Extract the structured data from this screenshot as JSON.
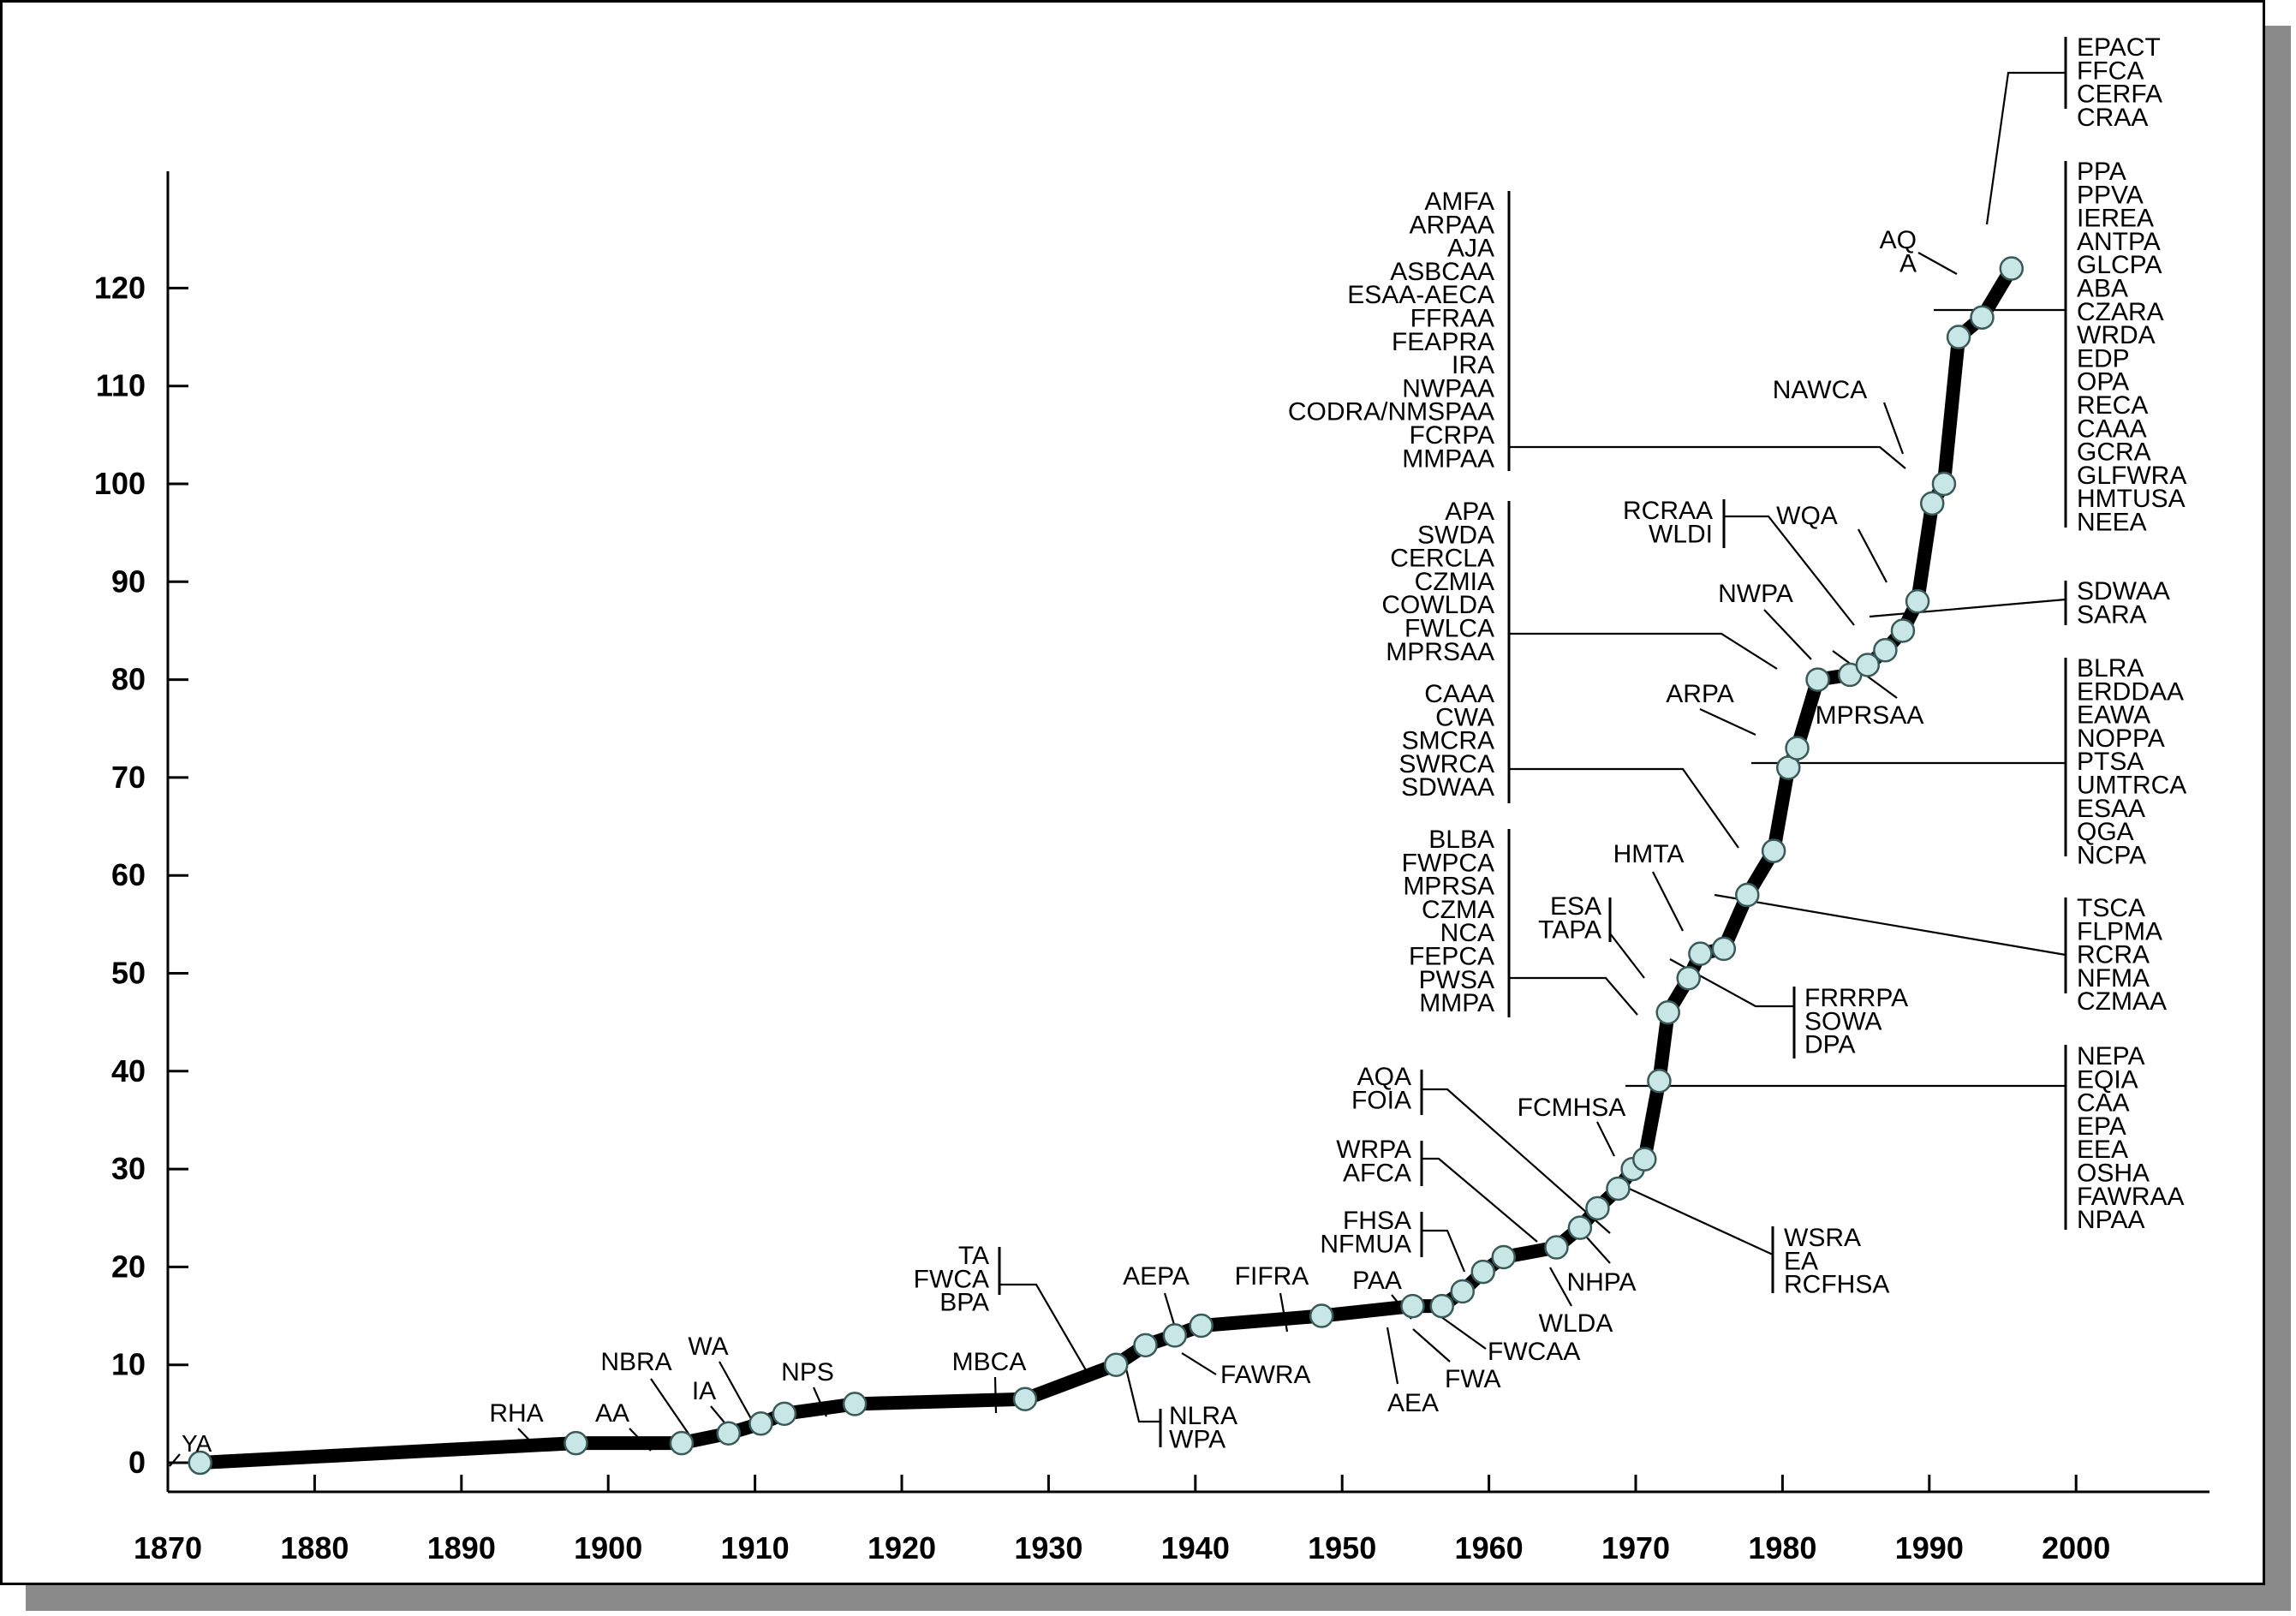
{
  "chart_data": {
    "type": "line",
    "title": "",
    "xlabel": "",
    "ylabel": "",
    "xlim": [
      1870,
      2010
    ],
    "ylim": [
      0,
      130
    ],
    "x_ticks": [
      "1870",
      "1880",
      "1890",
      "1900",
      "1910",
      "1920",
      "1930",
      "1940",
      "1950",
      "1960",
      "1970",
      "1980",
      "1990",
      "2000"
    ],
    "y_ticks": [
      "0",
      "10",
      "20",
      "30",
      "40",
      "50",
      "60",
      "70",
      "80",
      "90",
      "100",
      "110",
      "120"
    ],
    "colors": {
      "line": "#000000",
      "marker_fill": "#c8e6e6",
      "marker_stroke": "#3a5a5a",
      "shadow": "#8a8a8a"
    },
    "points": [
      {
        "x": 1872.2,
        "y": 0
      },
      {
        "x": 1897.8,
        "y": 2
      },
      {
        "x": 1905.0,
        "y": 2
      },
      {
        "x": 1908.2,
        "y": 3
      },
      {
        "x": 1910.4,
        "y": 4
      },
      {
        "x": 1912.0,
        "y": 5
      },
      {
        "x": 1916.8,
        "y": 6
      },
      {
        "x": 1928.4,
        "y": 6.5
      },
      {
        "x": 1934.6,
        "y": 10
      },
      {
        "x": 1936.6,
        "y": 12
      },
      {
        "x": 1938.6,
        "y": 13
      },
      {
        "x": 1940.4,
        "y": 14
      },
      {
        "x": 1948.6,
        "y": 15
      },
      {
        "x": 1954.8,
        "y": 16
      },
      {
        "x": 1956.8,
        "y": 16
      },
      {
        "x": 1958.2,
        "y": 17.5
      },
      {
        "x": 1959.6,
        "y": 19.5
      },
      {
        "x": 1961.0,
        "y": 21
      },
      {
        "x": 1964.6,
        "y": 22
      },
      {
        "x": 1966.2,
        "y": 24
      },
      {
        "x": 1967.4,
        "y": 26
      },
      {
        "x": 1968.8,
        "y": 28
      },
      {
        "x": 1969.8,
        "y": 30
      },
      {
        "x": 1970.6,
        "y": 31
      },
      {
        "x": 1971.6,
        "y": 39
      },
      {
        "x": 1972.2,
        "y": 46
      },
      {
        "x": 1973.6,
        "y": 49.5
      },
      {
        "x": 1974.4,
        "y": 52
      },
      {
        "x": 1976.0,
        "y": 52.5
      },
      {
        "x": 1977.6,
        "y": 58
      },
      {
        "x": 1979.4,
        "y": 62.5
      },
      {
        "x": 1980.4,
        "y": 71
      },
      {
        "x": 1981.0,
        "y": 73
      },
      {
        "x": 1982.4,
        "y": 80
      },
      {
        "x": 1984.6,
        "y": 80.5
      },
      {
        "x": 1985.8,
        "y": 81.5
      },
      {
        "x": 1987.0,
        "y": 83
      },
      {
        "x": 1988.2,
        "y": 85
      },
      {
        "x": 1989.2,
        "y": 88
      },
      {
        "x": 1990.2,
        "y": 98
      },
      {
        "x": 1991.0,
        "y": 100
      },
      {
        "x": 1992.0,
        "y": 115
      },
      {
        "x": 1993.6,
        "y": 117
      },
      {
        "x": 1995.6,
        "y": 122
      }
    ],
    "annotations": [
      {
        "labels": [
          "YA"
        ],
        "align": "left"
      },
      {
        "labels": [
          "RHA"
        ],
        "align": "center"
      },
      {
        "labels": [
          "AA"
        ],
        "align": "center"
      },
      {
        "labels": [
          "NBRA"
        ],
        "align": "center"
      },
      {
        "labels": [
          "WA"
        ],
        "align": "center"
      },
      {
        "labels": [
          "IA"
        ],
        "align": "center"
      },
      {
        "labels": [
          "NPS"
        ],
        "align": "center"
      },
      {
        "labels": [
          "MBCA"
        ],
        "align": "center"
      },
      {
        "labels": [
          "TA",
          "FWCA",
          "BPA"
        ],
        "align": "right"
      },
      {
        "labels": [
          "NLRA",
          "WPA"
        ],
        "align": "left"
      },
      {
        "labels": [
          "AEPA"
        ],
        "align": "center"
      },
      {
        "labels": [
          "FAWRA"
        ],
        "align": "left"
      },
      {
        "labels": [
          "FIFRA"
        ],
        "align": "center"
      },
      {
        "labels": [
          "PAA"
        ],
        "align": "center"
      },
      {
        "labels": [
          "AEA"
        ],
        "align": "center"
      },
      {
        "labels": [
          "FWA"
        ],
        "align": "left"
      },
      {
        "labels": [
          "FWCAA"
        ],
        "align": "left"
      },
      {
        "labels": [
          "FHSA",
          "NFMUA"
        ],
        "align": "right"
      },
      {
        "labels": [
          "WRPA",
          "AFCA"
        ],
        "align": "right"
      },
      {
        "labels": [
          "WLDA"
        ],
        "align": "center"
      },
      {
        "labels": [
          "AQA",
          "FOIA"
        ],
        "align": "right"
      },
      {
        "labels": [
          "NHPA"
        ],
        "align": "center"
      },
      {
        "labels": [
          "FCMHSA"
        ],
        "align": "center"
      },
      {
        "labels": [
          "WSRA",
          "EA",
          "RCFHSA"
        ],
        "align": "left"
      },
      {
        "labels": [
          "NEPA",
          "EQIA",
          "CAA",
          "EPA",
          "EEA",
          "OSHA",
          "FAWRAA",
          "NPAA"
        ],
        "align": "left"
      },
      {
        "labels": [
          "BLBA",
          "FWPCA",
          "MPRSA",
          "CZMA",
          "NCA",
          "FEPCA",
          "PWSA",
          "MMPA"
        ],
        "align": "right"
      },
      {
        "labels": [
          "ESA",
          "TAPA"
        ],
        "align": "right"
      },
      {
        "labels": [
          "HMTA"
        ],
        "align": "center"
      },
      {
        "labels": [
          "FRRRPA",
          "SOWA",
          "DPA"
        ],
        "align": "left"
      },
      {
        "labels": [
          "TSCA",
          "FLPMA",
          "RCRA",
          "NFMA",
          "CZMAA"
        ],
        "align": "left"
      },
      {
        "labels": [
          "CAAA",
          "CWA",
          "SMCRA",
          "SWRCA",
          "SDWAA"
        ],
        "align": "right"
      },
      {
        "labels": [
          "ARPA"
        ],
        "align": "center"
      },
      {
        "labels": [
          "BLRA",
          "ERDDAA",
          "EAWA",
          "NOPPA",
          "PTSA",
          "UMTRCA",
          "ESAA",
          "QGA",
          "NCPA"
        ],
        "align": "left"
      },
      {
        "labels": [
          "APA",
          "SWDA",
          "CERCLA",
          "CZMIA",
          "COWLDA",
          "FWLCA",
          "MPRSAA"
        ],
        "align": "right"
      },
      {
        "labels": [
          "NWPA"
        ],
        "align": "center"
      },
      {
        "labels": [
          "RCRAA",
          "WLDI"
        ],
        "align": "right"
      },
      {
        "labels": [
          "MPRSAA"
        ],
        "align": "center"
      },
      {
        "labels": [
          "WQA"
        ],
        "align": "center"
      },
      {
        "labels": [
          "SDWAA",
          "SARA"
        ],
        "align": "left"
      },
      {
        "labels": [
          "AMFA",
          "ARPAA",
          "AJA",
          "ASBCAA",
          "ESAA-AECA",
          "FFRAA",
          "FEAPRA",
          "IRA",
          "NWPAA",
          "CODRA/NMSPAA",
          "FCRPA",
          "MMPAA"
        ],
        "align": "right"
      },
      {
        "labels": [
          "NAWCA"
        ],
        "align": "center"
      },
      {
        "labels": [
          "PPA",
          "PPVA",
          "IEREA",
          "ANTPA",
          "GLCPA",
          "ABA",
          "CZARA",
          "WRDA",
          "EDP",
          "OPA",
          "RECA",
          "CAAA",
          "GCRA",
          "GLFWRA",
          "HMTUSA",
          "NEEA"
        ],
        "align": "left"
      },
      {
        "labels": [
          "AQ",
          "A"
        ],
        "align": "right"
      },
      {
        "labels": [
          "EPACT",
          "FFCA",
          "CERFA",
          "CRAA"
        ],
        "align": "left"
      }
    ]
  }
}
